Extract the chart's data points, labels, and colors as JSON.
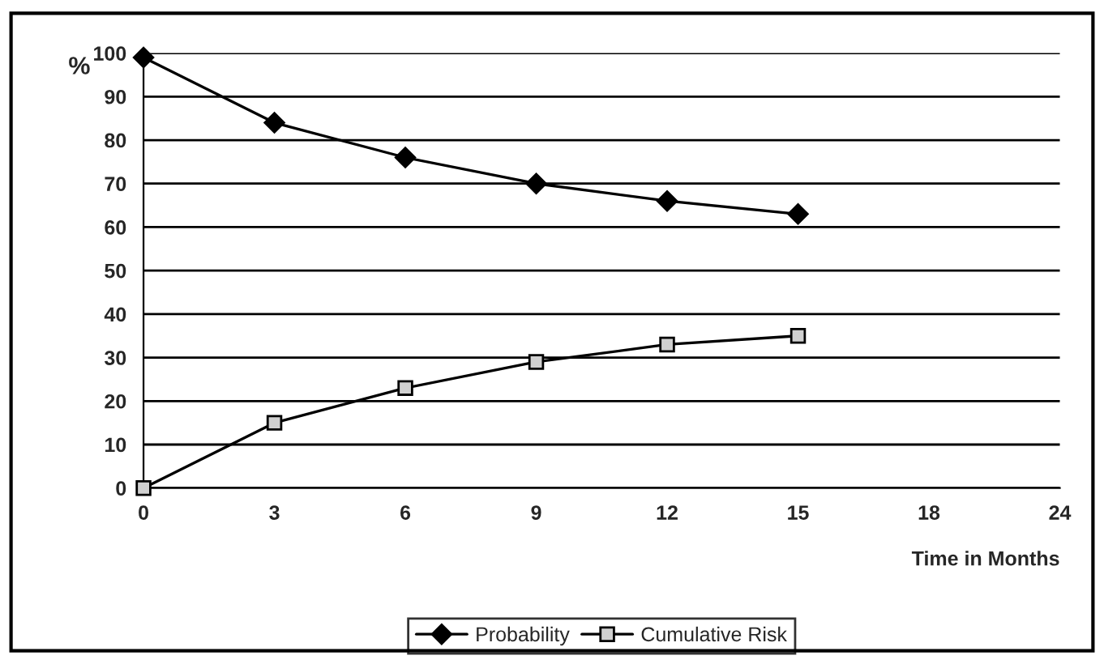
{
  "chart_data": {
    "type": "line",
    "categories": [
      "0",
      "3",
      "6",
      "9",
      "12",
      "15",
      "18",
      "24"
    ],
    "series": [
      {
        "name": "Probability",
        "color": "#000000",
        "marker": "diamond",
        "values": [
          99,
          84,
          76,
          70,
          66,
          63,
          null,
          null
        ]
      },
      {
        "name": "Cumulative Risk",
        "color": "#000000",
        "marker": "square",
        "values": [
          0,
          15,
          23,
          29,
          33,
          35,
          null,
          null
        ]
      }
    ],
    "xlabel": "Time in Months",
    "ylabel": "%",
    "ylim": [
      0,
      100
    ],
    "yticks": [
      0,
      10,
      20,
      30,
      40,
      50,
      60,
      70,
      80,
      90,
      100
    ],
    "grid": "y",
    "legend": "bottom",
    "line_style": "solid"
  }
}
